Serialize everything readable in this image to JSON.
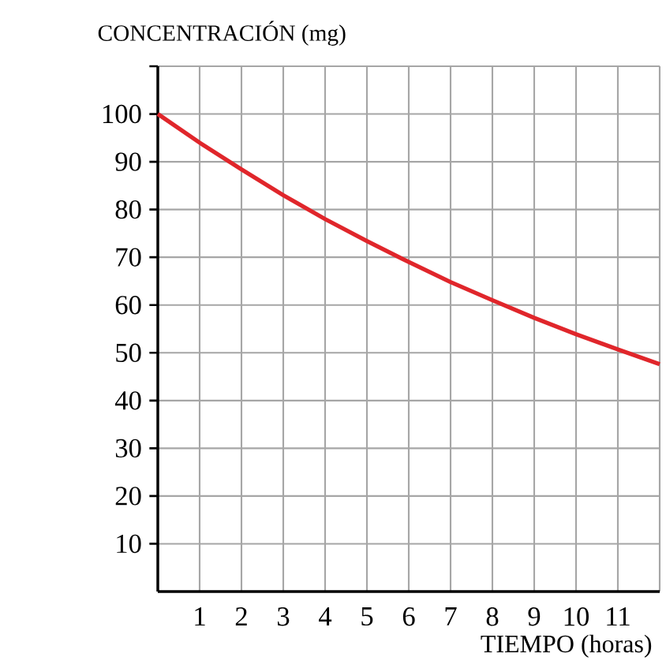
{
  "chart_data": {
    "type": "line",
    "ylabel": "CONCENTRACIÓN (mg)",
    "xlabel": "TIEMPO (horas)",
    "x": [
      0,
      1,
      2,
      3,
      4,
      5,
      6,
      7,
      8,
      9,
      10,
      11,
      12
    ],
    "values": [
      100,
      94,
      88.4,
      83,
      78,
      73.4,
      69,
      64.8,
      61,
      57.3,
      53.9,
      50.7,
      47.6
    ],
    "color": "#e0262b",
    "xlim": [
      0,
      12
    ],
    "ylim": [
      0,
      110
    ],
    "xticks": [
      1,
      2,
      3,
      4,
      5,
      6,
      7,
      8,
      9,
      10,
      11,
      {
        "value": 12,
        "label": null
      }
    ],
    "yticks": [
      10,
      20,
      30,
      40,
      50,
      60,
      70,
      80,
      90,
      100,
      {
        "value": 110,
        "label": null
      }
    ],
    "grid": true
  }
}
